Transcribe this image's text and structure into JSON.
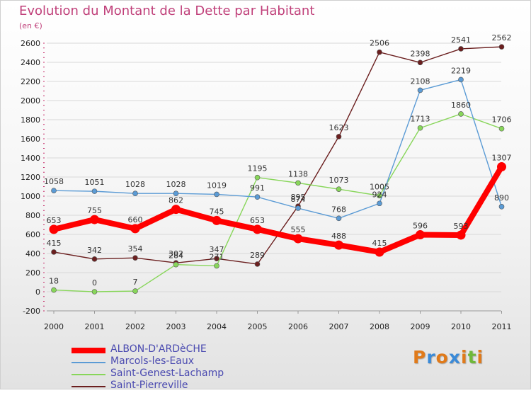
{
  "title": "Evolution du Montant de la Dette par Habitant",
  "unit_label": "(en €)",
  "logo": {
    "text": "Proxiti",
    "letter_colors": [
      "#e07a1a",
      "#3a8ad8",
      "#e07a1a",
      "#3a8ad8",
      "#e07a1a",
      "#6fb83a",
      "#e07a1a"
    ]
  },
  "chart_data": {
    "type": "line",
    "title": "Evolution du Montant de la Dette par Habitant",
    "ylabel": "(en €)",
    "xlabel": "",
    "x": [
      "2000",
      "2001",
      "2002",
      "2003",
      "2004",
      "2005",
      "2006",
      "2007",
      "2008",
      "2009",
      "2010",
      "2011"
    ],
    "ylim": [
      -200,
      2600
    ],
    "yticks": [
      -200,
      0,
      200,
      400,
      600,
      800,
      1000,
      1200,
      1400,
      1600,
      1800,
      2000,
      2200,
      2400,
      2600
    ],
    "grid": "horizontal",
    "legend_position": "bottom-left",
    "series": [
      {
        "name": "Saint-Pierreville",
        "color": "#6b1f1f",
        "emphasis": false,
        "values": [
          415,
          342,
          354,
          302,
          347,
          289,
          895,
          1623,
          2506,
          2398,
          2541,
          2562
        ],
        "labels": [
          "415",
          "342",
          "354",
          "302",
          "347",
          "289",
          "895",
          "1623",
          "2506",
          "2398",
          "2541",
          "2562"
        ]
      },
      {
        "name": "Saint-Genest-Lachamp",
        "color": "#88d65a",
        "emphasis": false,
        "values": [
          18,
          0,
          7,
          284,
          271,
          1195,
          1138,
          1073,
          1005,
          1713,
          1860,
          1706
        ],
        "labels": [
          "18",
          "0",
          "7",
          "284",
          "271",
          "1195",
          "1138",
          "1073",
          "1005",
          "1713",
          "1860",
          "1706"
        ]
      },
      {
        "name": "Marcols-les-Eaux",
        "color": "#5b9bd5",
        "emphasis": false,
        "values": [
          1058,
          1051,
          1028,
          1028,
          1019,
          991,
          874,
          768,
          924,
          2108,
          2219,
          890
        ],
        "labels": [
          "1058",
          "1051",
          "1028",
          "1028",
          "1019",
          "991",
          "874",
          "768",
          "924",
          "2108",
          "2219",
          "890"
        ]
      },
      {
        "name": "ALBON-D'ARDèCHE",
        "color": "#ff0000",
        "emphasis": true,
        "values": [
          653,
          755,
          660,
          862,
          745,
          653,
          555,
          488,
          415,
          596,
          593,
          1307
        ],
        "labels": [
          "653",
          "755",
          "660",
          "862",
          "745",
          "653",
          "555",
          "488",
          "415",
          "596",
          "593",
          "1307"
        ]
      }
    ],
    "legend": [
      "ALBON-D'ARDèCHE",
      "Marcols-les-Eaux",
      "Saint-Genest-Lachamp",
      "Saint-Pierreville"
    ]
  }
}
